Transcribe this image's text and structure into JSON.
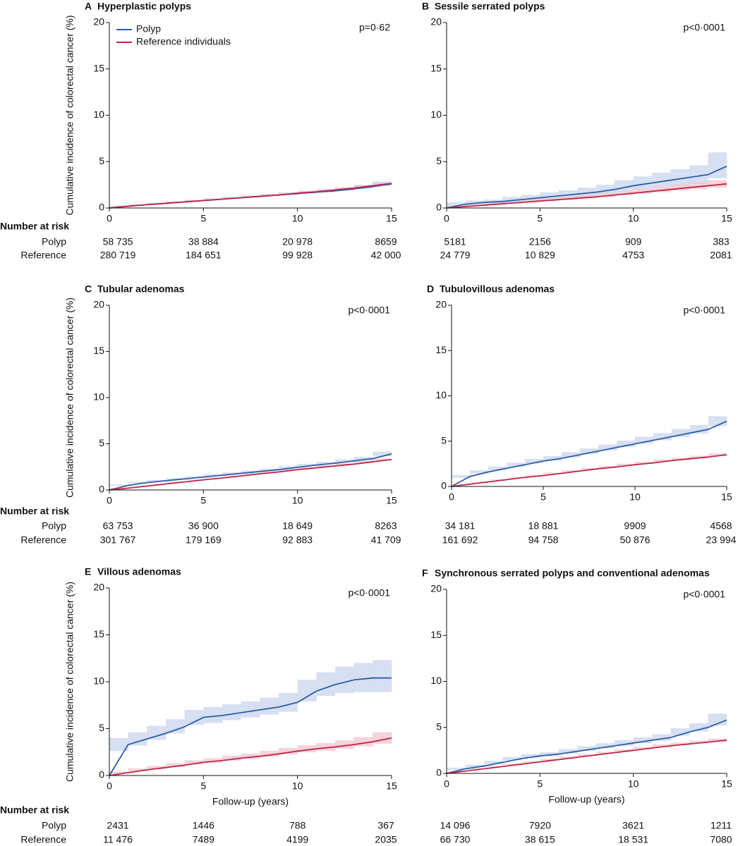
{
  "chart_data": [
    {
      "type": "line",
      "panel": "A",
      "title": "Hyperplastic polyps",
      "annotation": "p=0·62",
      "ylabel": "Cumulative incidence of colorectal cancer (%)",
      "x": [
        0,
        1,
        2,
        3,
        4,
        5,
        6,
        7,
        8,
        9,
        10,
        11,
        12,
        13,
        14,
        15
      ],
      "xlim": [
        0,
        15
      ],
      "xticks": [
        0,
        5,
        10,
        15
      ],
      "ylim": [
        0,
        20
      ],
      "yticks": [
        0,
        5,
        10,
        15,
        20
      ],
      "legend": "top-left",
      "series": [
        {
          "name": "Polyp",
          "color": "#2a5fa8",
          "band_color": "#c9d4ee",
          "values": [
            0,
            0.2,
            0.35,
            0.5,
            0.65,
            0.8,
            0.95,
            1.1,
            1.25,
            1.4,
            1.55,
            1.7,
            1.85,
            2.05,
            2.3,
            2.6
          ],
          "lower": [
            0,
            0.15,
            0.3,
            0.45,
            0.58,
            0.72,
            0.86,
            1.0,
            1.14,
            1.28,
            1.42,
            1.56,
            1.7,
            1.88,
            2.1,
            2.4
          ],
          "upper": [
            0,
            0.25,
            0.4,
            0.55,
            0.72,
            0.88,
            1.04,
            1.2,
            1.36,
            1.52,
            1.68,
            1.84,
            2.0,
            2.22,
            2.5,
            2.85
          ]
        },
        {
          "name": "Reference individuals",
          "color": "#c0244b",
          "band_color": "#f2c4cc",
          "values": [
            0,
            0.18,
            0.35,
            0.5,
            0.65,
            0.8,
            0.95,
            1.1,
            1.25,
            1.4,
            1.6,
            1.75,
            1.95,
            2.15,
            2.4,
            2.65
          ],
          "lower": [
            0,
            0.16,
            0.32,
            0.47,
            0.62,
            0.76,
            0.91,
            1.06,
            1.2,
            1.35,
            1.54,
            1.69,
            1.88,
            2.07,
            2.31,
            2.55
          ],
          "upper": [
            0,
            0.2,
            0.38,
            0.53,
            0.68,
            0.84,
            0.99,
            1.14,
            1.3,
            1.45,
            1.66,
            1.81,
            2.02,
            2.23,
            2.49,
            2.75
          ]
        }
      ],
      "risk_table": {
        "title": "Number at risk",
        "rows": [
          {
            "label": "Polyp",
            "values": [
              "58 735",
              "38 884",
              "20 978",
              "8659"
            ]
          },
          {
            "label": "Reference",
            "values": [
              "280 719",
              "184 651",
              "99 928",
              "42 000"
            ]
          }
        ]
      }
    },
    {
      "type": "line",
      "panel": "B",
      "title": "Sessile serrated polyps",
      "annotation": "p<0·0001",
      "x": [
        0,
        1,
        2,
        3,
        4,
        5,
        6,
        7,
        8,
        9,
        10,
        11,
        12,
        13,
        14,
        15
      ],
      "xlim": [
        0,
        15
      ],
      "xticks": [
        0,
        5,
        10,
        15
      ],
      "ylim": [
        0,
        20
      ],
      "yticks": [
        0,
        5,
        10,
        15,
        20
      ],
      "series": [
        {
          "color": "#2a5fa8",
          "band_color": "#c9d4ee",
          "values": [
            0,
            0.4,
            0.6,
            0.7,
            0.9,
            1.1,
            1.3,
            1.5,
            1.7,
            2.0,
            2.4,
            2.7,
            3.0,
            3.3,
            3.6,
            4.5
          ],
          "lower": [
            0,
            0.2,
            0.4,
            0.5,
            0.6,
            0.8,
            0.9,
            1.1,
            1.2,
            1.5,
            1.8,
            2.0,
            2.2,
            2.4,
            2.6,
            3.2
          ],
          "upper": [
            0,
            0.6,
            0.8,
            0.9,
            1.2,
            1.4,
            1.7,
            1.9,
            2.2,
            2.5,
            3.0,
            3.4,
            3.8,
            4.2,
            4.6,
            6.0
          ]
        },
        {
          "color": "#c0244b",
          "band_color": "#f2c4cc",
          "values": [
            0,
            0.15,
            0.3,
            0.45,
            0.6,
            0.75,
            0.9,
            1.05,
            1.2,
            1.4,
            1.6,
            1.8,
            2.0,
            2.2,
            2.4,
            2.6
          ],
          "lower": [
            0,
            0.1,
            0.22,
            0.35,
            0.48,
            0.62,
            0.75,
            0.88,
            1.0,
            1.18,
            1.36,
            1.53,
            1.7,
            1.87,
            2.03,
            2.2
          ],
          "upper": [
            0,
            0.2,
            0.38,
            0.55,
            0.72,
            0.88,
            1.05,
            1.22,
            1.4,
            1.62,
            1.84,
            2.07,
            2.3,
            2.53,
            2.77,
            3.0
          ]
        }
      ],
      "risk_table": {
        "rows": [
          {
            "values": [
              "5181",
              "2156",
              "909",
              "383"
            ]
          },
          {
            "values": [
              "24 779",
              "10 829",
              "4753",
              "2081"
            ]
          }
        ]
      }
    },
    {
      "type": "line",
      "panel": "C",
      "title": "Tubular adenomas",
      "annotation": "p<0·0001",
      "ylabel": "Cumulative incidence of colorectal cancer (%)",
      "x": [
        0,
        1,
        2,
        3,
        4,
        5,
        6,
        7,
        8,
        9,
        10,
        11,
        12,
        13,
        14,
        15
      ],
      "xlim": [
        0,
        15
      ],
      "xticks": [
        0,
        5,
        10,
        15
      ],
      "ylim": [
        0,
        20
      ],
      "yticks": [
        0,
        5,
        10,
        15,
        20
      ],
      "series": [
        {
          "color": "#2a5fa8",
          "band_color": "#c9d4ee",
          "values": [
            0,
            0.5,
            0.8,
            1.0,
            1.2,
            1.4,
            1.6,
            1.8,
            2.0,
            2.2,
            2.45,
            2.7,
            2.9,
            3.15,
            3.4,
            3.9
          ],
          "lower": [
            0,
            0.42,
            0.72,
            0.92,
            1.12,
            1.32,
            1.51,
            1.7,
            1.9,
            2.09,
            2.33,
            2.57,
            2.76,
            2.99,
            3.22,
            3.65
          ],
          "upper": [
            0,
            0.58,
            0.88,
            1.08,
            1.28,
            1.48,
            1.69,
            1.9,
            2.1,
            2.31,
            2.57,
            2.83,
            3.04,
            3.31,
            3.58,
            4.15
          ]
        },
        {
          "color": "#c0244b",
          "band_color": "#f2c4cc",
          "values": [
            0,
            0.2,
            0.42,
            0.65,
            0.87,
            1.1,
            1.3,
            1.52,
            1.75,
            1.95,
            2.2,
            2.4,
            2.6,
            2.8,
            3.05,
            3.3
          ],
          "lower": [
            0,
            0.18,
            0.4,
            0.62,
            0.84,
            1.06,
            1.26,
            1.48,
            1.7,
            1.9,
            2.14,
            2.34,
            2.53,
            2.72,
            2.96,
            3.2
          ],
          "upper": [
            0,
            0.22,
            0.44,
            0.68,
            0.9,
            1.14,
            1.34,
            1.56,
            1.8,
            2.0,
            2.26,
            2.46,
            2.67,
            2.88,
            3.14,
            3.4
          ]
        }
      ],
      "risk_table": {
        "title": "Number at risk",
        "rows": [
          {
            "label": "Polyp",
            "values": [
              "63 753",
              "36 900",
              "18 649",
              "8263"
            ]
          },
          {
            "label": "Reference",
            "values": [
              "301 767",
              "179 169",
              "92 883",
              "41 709"
            ]
          }
        ]
      }
    },
    {
      "type": "line",
      "panel": "D",
      "title": "Tubulovillous adenomas",
      "annotation": "p<0·0001",
      "x": [
        0,
        1,
        2,
        3,
        4,
        5,
        6,
        7,
        8,
        9,
        10,
        11,
        12,
        13,
        14,
        15
      ],
      "xlim": [
        0,
        15
      ],
      "xticks": [
        0,
        5,
        10,
        15
      ],
      "ylim": [
        0,
        20
      ],
      "yticks": [
        0,
        5,
        10,
        15,
        20
      ],
      "series": [
        {
          "color": "#2a5fa8",
          "band_color": "#c9d4ee",
          "values": [
            0,
            1.1,
            1.6,
            2.0,
            2.4,
            2.8,
            3.1,
            3.5,
            3.9,
            4.3,
            4.7,
            5.1,
            5.5,
            5.9,
            6.3,
            7.2
          ],
          "lower": [
            0,
            0.95,
            1.42,
            1.8,
            2.18,
            2.56,
            2.84,
            3.22,
            3.6,
            3.98,
            4.35,
            4.72,
            5.1,
            5.46,
            5.82,
            6.65
          ],
          "upper": [
            0,
            1.25,
            1.78,
            2.2,
            2.62,
            3.04,
            3.36,
            3.78,
            4.2,
            4.62,
            5.05,
            5.48,
            5.9,
            6.34,
            6.78,
            7.75
          ]
        },
        {
          "color": "#c0244b",
          "band_color": "#f2c4cc",
          "values": [
            0,
            0.25,
            0.5,
            0.75,
            1.0,
            1.2,
            1.45,
            1.7,
            1.95,
            2.15,
            2.4,
            2.6,
            2.85,
            3.05,
            3.25,
            3.5
          ],
          "lower": [
            0,
            0.23,
            0.47,
            0.71,
            0.95,
            1.14,
            1.38,
            1.62,
            1.86,
            2.05,
            2.29,
            2.48,
            2.72,
            2.91,
            3.1,
            3.34
          ],
          "upper": [
            0,
            0.27,
            0.53,
            0.79,
            1.05,
            1.26,
            1.52,
            1.78,
            2.04,
            2.25,
            2.51,
            2.72,
            2.98,
            3.19,
            3.4,
            3.66
          ]
        }
      ],
      "risk_table": {
        "rows": [
          {
            "values": [
              "34 181",
              "18 881",
              "9909",
              "4568"
            ]
          },
          {
            "values": [
              "161 692",
              "94 758",
              "50 876",
              "23 994"
            ]
          }
        ]
      }
    },
    {
      "type": "line",
      "panel": "E",
      "title": "Villous adenomas",
      "annotation": "p<0·0001",
      "ylabel": "Cumulative incidence of colorectal cancer (%)",
      "xlabel": "Follow-up (years)",
      "x": [
        0,
        1,
        2,
        3,
        4,
        5,
        6,
        7,
        8,
        9,
        10,
        11,
        12,
        13,
        14,
        15
      ],
      "xlim": [
        0,
        15
      ],
      "xticks": [
        0,
        5,
        10,
        15
      ],
      "ylim": [
        0,
        20
      ],
      "yticks": [
        0,
        5,
        10,
        15,
        20
      ],
      "series": [
        {
          "color": "#2a5fa8",
          "band_color": "#c9d4ee",
          "values": [
            0,
            3.3,
            3.9,
            4.5,
            5.2,
            6.2,
            6.4,
            6.7,
            7.0,
            7.3,
            7.8,
            9.0,
            9.7,
            10.2,
            10.4,
            10.4
          ],
          "lower": [
            0,
            2.6,
            3.2,
            3.8,
            4.5,
            5.4,
            5.6,
            5.9,
            6.2,
            6.5,
            6.8,
            7.9,
            8.5,
            8.8,
            8.9,
            8.9
          ],
          "upper": [
            0,
            4.0,
            4.6,
            5.3,
            6.0,
            7.0,
            7.3,
            7.6,
            7.9,
            8.3,
            8.8,
            10.2,
            11.0,
            11.6,
            12.0,
            12.3
          ]
        },
        {
          "color": "#c0244b",
          "band_color": "#f2c4cc",
          "values": [
            0,
            0.3,
            0.6,
            0.85,
            1.1,
            1.4,
            1.6,
            1.85,
            2.05,
            2.3,
            2.6,
            2.85,
            3.05,
            3.3,
            3.6,
            4.0
          ],
          "lower": [
            0,
            0.2,
            0.45,
            0.68,
            0.9,
            1.18,
            1.36,
            1.58,
            1.76,
            1.98,
            2.25,
            2.47,
            2.64,
            2.85,
            3.1,
            3.4
          ],
          "upper": [
            0,
            0.4,
            0.75,
            1.02,
            1.3,
            1.62,
            1.84,
            2.12,
            2.34,
            2.62,
            2.95,
            3.23,
            3.46,
            3.75,
            4.1,
            4.6
          ]
        }
      ],
      "risk_table": {
        "title": "Number at risk",
        "rows": [
          {
            "label": "Polyp",
            "values": [
              "2431",
              "1446",
              "788",
              "367"
            ]
          },
          {
            "label": "Reference",
            "values": [
              "11 476",
              "7489",
              "4199",
              "2035"
            ]
          }
        ]
      }
    },
    {
      "type": "line",
      "panel": "F",
      "title": "Synchronous serrated polyps and conventional adenomas",
      "annotation": "p<0·0001",
      "xlabel": "Follow-up (years)",
      "x": [
        0,
        1,
        2,
        3,
        4,
        5,
        6,
        7,
        8,
        9,
        10,
        11,
        12,
        13,
        14,
        15
      ],
      "xlim": [
        0,
        15
      ],
      "xticks": [
        0,
        5,
        10,
        15
      ],
      "ylim": [
        0,
        20
      ],
      "yticks": [
        0,
        5,
        10,
        15,
        20
      ],
      "series": [
        {
          "color": "#2a5fa8",
          "band_color": "#c9d4ee",
          "values": [
            0,
            0.5,
            0.8,
            1.2,
            1.6,
            1.9,
            2.1,
            2.4,
            2.7,
            3.0,
            3.3,
            3.6,
            3.9,
            4.5,
            5.0,
            5.8
          ],
          "lower": [
            0,
            0.38,
            0.66,
            1.04,
            1.42,
            1.7,
            1.88,
            2.16,
            2.44,
            2.72,
            3.0,
            3.27,
            3.54,
            4.1,
            4.55,
            5.2
          ],
          "upper": [
            0,
            0.62,
            0.94,
            1.36,
            1.78,
            2.1,
            2.32,
            2.64,
            2.96,
            3.28,
            3.6,
            3.93,
            4.26,
            4.9,
            5.45,
            6.5
          ]
        },
        {
          "color": "#c0244b",
          "band_color": "#f2c4cc",
          "values": [
            0,
            0.25,
            0.5,
            0.75,
            1.0,
            1.25,
            1.5,
            1.75,
            2.0,
            2.25,
            2.5,
            2.75,
            3.0,
            3.2,
            3.4,
            3.6
          ],
          "lower": [
            0,
            0.22,
            0.46,
            0.7,
            0.94,
            1.18,
            1.42,
            1.66,
            1.9,
            2.14,
            2.38,
            2.62,
            2.86,
            3.05,
            3.24,
            3.43
          ],
          "upper": [
            0,
            0.28,
            0.54,
            0.8,
            1.06,
            1.32,
            1.58,
            1.84,
            2.1,
            2.36,
            2.62,
            2.88,
            3.14,
            3.35,
            3.56,
            3.77
          ]
        }
      ],
      "risk_table": {
        "rows": [
          {
            "values": [
              "14 096",
              "7920",
              "3621",
              "1211"
            ]
          },
          {
            "values": [
              "66 730",
              "38 615",
              "18 531",
              "7080"
            ]
          }
        ]
      }
    }
  ]
}
